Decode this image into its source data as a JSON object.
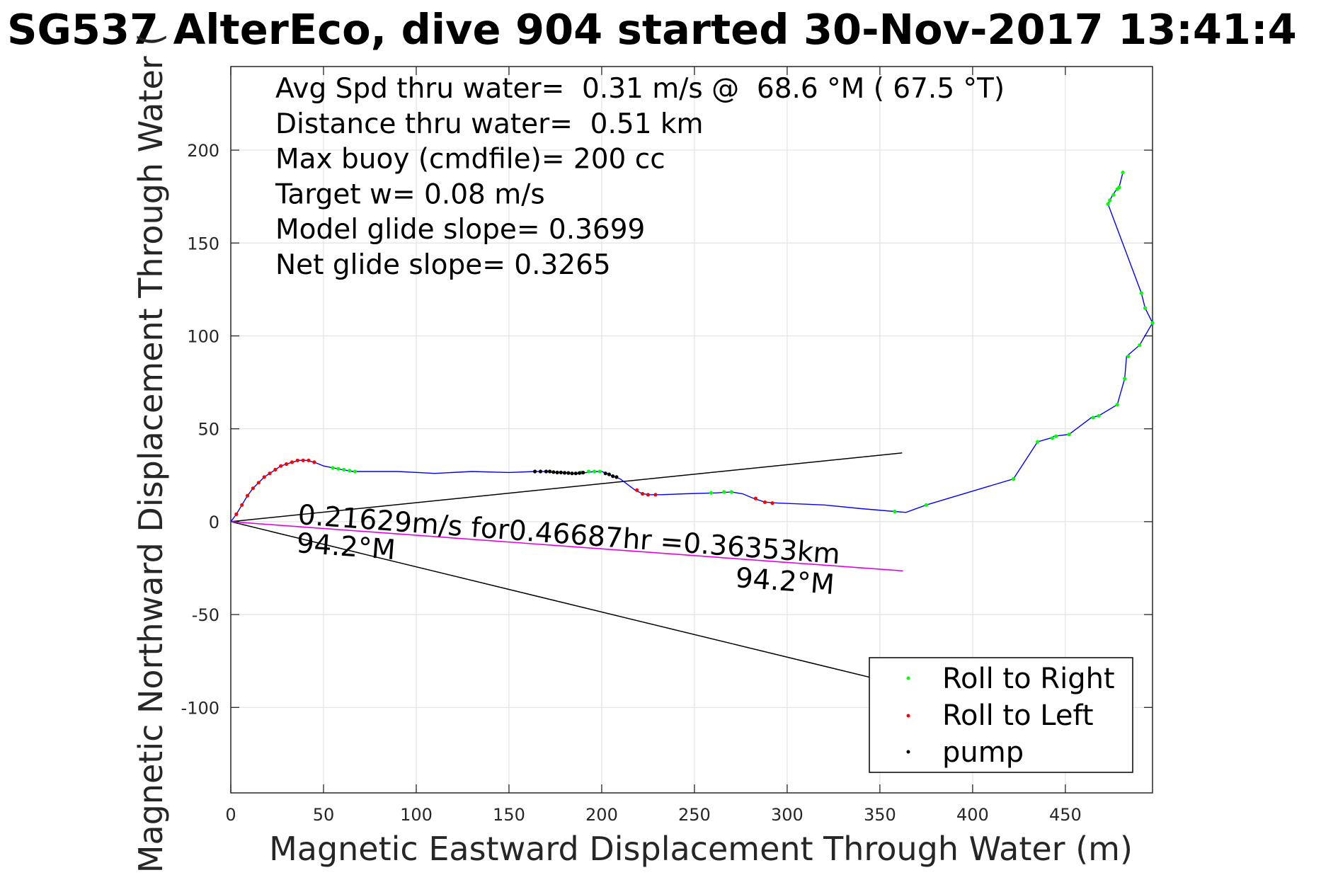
{
  "chart_data": {
    "type": "line",
    "title": "SG537 AlterEco, dive 904 started 30-Nov-2017 13:41:4",
    "xlabel": "Magnetic Eastward Displacement Through Water (m)",
    "ylabel": "Magnetic Northward Displacement Through Water (",
    "xlim": [
      0,
      497
    ],
    "ylim": [
      -146,
      245
    ],
    "xticks": [
      0,
      50,
      100,
      150,
      200,
      250,
      300,
      350,
      400,
      450
    ],
    "yticks": [
      -100,
      -50,
      0,
      50,
      100,
      150,
      200
    ],
    "grid": true,
    "legend_position": "bottom-right",
    "stats": [
      "Avg Spd thru water=  0.31 m/s @  68.6 °M ( 67.5 °T)",
      "Distance thru water=  0.51 km",
      "Max buoy (cmdfile)= 200 cc",
      "Target w= 0.08 m/s",
      "Model glide slope= 0.3699",
      "Net glide slope= 0.3265"
    ],
    "annotations": {
      "current_text": "0.21629m/s for0.46687hr =0.36353km",
      "current_heading": "94.2°M",
      "current_heading_end": "94.2°M"
    },
    "colors": {
      "track": "#0000ff",
      "current": "#e600e6",
      "roll_right": "#00ff00",
      "roll_left": "#ff0000",
      "pump": "#000000",
      "wedge": "#000000"
    },
    "series": [
      {
        "name": "track",
        "points": [
          [
            0,
            0
          ],
          [
            3,
            4
          ],
          [
            6,
            9
          ],
          [
            9,
            14
          ],
          [
            12,
            18
          ],
          [
            15,
            21
          ],
          [
            18,
            24
          ],
          [
            21,
            26
          ],
          [
            24,
            28
          ],
          [
            27,
            30
          ],
          [
            30,
            31
          ],
          [
            33,
            32
          ],
          [
            37,
            33
          ],
          [
            41,
            33
          ],
          [
            45,
            32
          ],
          [
            50,
            30
          ],
          [
            55,
            29
          ],
          [
            60,
            28
          ],
          [
            66,
            27
          ],
          [
            75,
            27
          ],
          [
            90,
            27
          ],
          [
            110,
            26
          ],
          [
            130,
            27
          ],
          [
            150,
            26.5
          ],
          [
            164,
            27
          ],
          [
            170,
            27
          ],
          [
            175,
            26.5
          ],
          [
            180,
            26.5
          ],
          [
            186,
            26
          ],
          [
            188,
            26
          ],
          [
            192,
            26.5
          ],
          [
            196,
            27
          ],
          [
            200,
            27
          ],
          [
            205,
            25
          ],
          [
            210,
            23
          ],
          [
            214,
            20
          ],
          [
            218,
            17
          ],
          [
            222,
            15
          ],
          [
            226,
            14.5
          ],
          [
            232,
            14.5
          ],
          [
            245,
            15
          ],
          [
            262,
            15.5
          ],
          [
            270,
            16
          ],
          [
            276,
            15
          ],
          [
            282,
            12.5
          ],
          [
            288,
            10.5
          ],
          [
            295,
            10
          ],
          [
            320,
            9
          ],
          [
            340,
            7
          ],
          [
            358,
            5.5
          ],
          [
            364,
            5
          ],
          [
            375,
            9
          ],
          [
            422,
            23
          ],
          [
            435,
            43
          ],
          [
            442,
            45
          ],
          [
            444,
            46
          ],
          [
            452,
            47
          ],
          [
            464,
            56
          ],
          [
            468,
            57
          ],
          [
            478,
            63
          ],
          [
            482,
            77
          ],
          [
            483,
            89
          ],
          [
            490,
            95
          ],
          [
            497,
            107
          ],
          [
            493,
            115
          ],
          [
            491,
            123
          ],
          [
            473,
            171
          ],
          [
            475,
            175
          ],
          [
            477,
            178
          ],
          [
            479,
            180
          ],
          [
            481,
            188
          ]
        ]
      },
      {
        "name": "Roll to Right",
        "points": [
          [
            55,
            29
          ],
          [
            58,
            28.5
          ],
          [
            61,
            28
          ],
          [
            64,
            27.5
          ],
          [
            67,
            27
          ],
          [
            189,
            26.5
          ],
          [
            193,
            27
          ],
          [
            196,
            27
          ],
          [
            199,
            27
          ],
          [
            259,
            15.5
          ],
          [
            266,
            16
          ],
          [
            270,
            16
          ],
          [
            358,
            5.5
          ],
          [
            375,
            9
          ],
          [
            422,
            23
          ],
          [
            435,
            43
          ],
          [
            443,
            45
          ],
          [
            445,
            46
          ],
          [
            452,
            47
          ],
          [
            465,
            56
          ],
          [
            468,
            57
          ],
          [
            478,
            63
          ],
          [
            482,
            77
          ],
          [
            484,
            89
          ],
          [
            490,
            95
          ],
          [
            497,
            107
          ],
          [
            493,
            115
          ],
          [
            491,
            123
          ],
          [
            473,
            171
          ],
          [
            474,
            173
          ],
          [
            476,
            176
          ],
          [
            478,
            179
          ],
          [
            479,
            180
          ],
          [
            481,
            188
          ]
        ]
      },
      {
        "name": "Roll to Left",
        "points": [
          [
            3,
            4
          ],
          [
            6,
            9
          ],
          [
            9,
            14
          ],
          [
            12,
            18
          ],
          [
            15,
            21
          ],
          [
            18,
            24
          ],
          [
            21,
            26
          ],
          [
            24,
            28
          ],
          [
            27,
            30
          ],
          [
            30,
            31
          ],
          [
            33,
            32
          ],
          [
            36,
            33
          ],
          [
            39,
            33
          ],
          [
            42,
            33
          ],
          [
            45,
            32
          ],
          [
            219,
            17
          ],
          [
            222,
            15
          ],
          [
            225,
            14.5
          ],
          [
            229,
            14.5
          ],
          [
            283,
            12.5
          ],
          [
            288,
            10.5
          ],
          [
            292,
            10
          ]
        ]
      },
      {
        "name": "pump",
        "points": [
          [
            164,
            27
          ],
          [
            167,
            27
          ],
          [
            170,
            27
          ],
          [
            172,
            27
          ],
          [
            174,
            26.7
          ],
          [
            176,
            26.5
          ],
          [
            178,
            26.5
          ],
          [
            180,
            26.3
          ],
          [
            182,
            26.2
          ],
          [
            184,
            26
          ],
          [
            186,
            26
          ],
          [
            188,
            26.2
          ],
          [
            190,
            26.4
          ],
          [
            202,
            26
          ],
          [
            204,
            25.5
          ],
          [
            206,
            24.5
          ],
          [
            208,
            24
          ]
        ]
      },
      {
        "name": "current",
        "points": [
          [
            0,
            0
          ],
          [
            362.5,
            -26.5
          ]
        ]
      },
      {
        "name": "wedge",
        "points": [
          [
            362,
            37
          ],
          [
            0,
            0
          ],
          [
            362,
            -88
          ]
        ]
      }
    ]
  }
}
